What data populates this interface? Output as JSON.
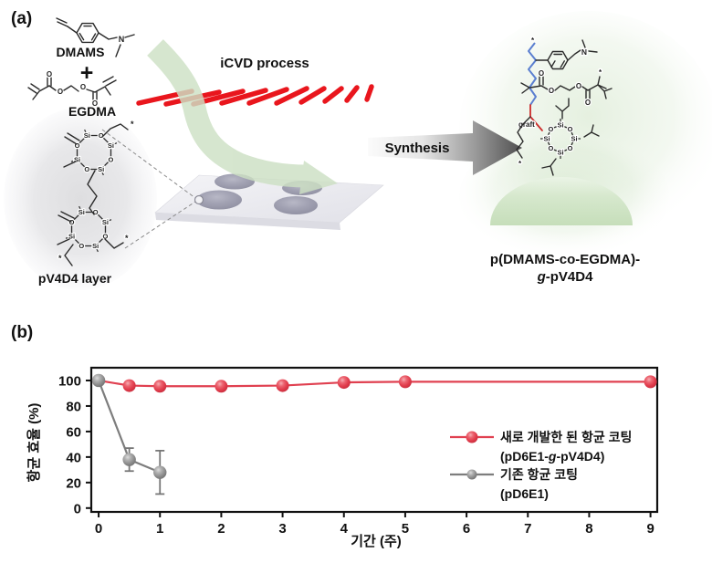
{
  "panel_a": {
    "label": "(a)",
    "dmams": "DMAMS",
    "plus": "+",
    "egdma": "EGDMA",
    "icvd": "iCVD process",
    "pv4d4": "pV4D4 layer",
    "synthesis": "Synthesis",
    "graft": "graft",
    "product_line1": "p(DMAMS-co-EGDMA)-",
    "product_g": "g",
    "product_rest": "-pV4D4"
  },
  "panel_b": {
    "label": "(b)"
  },
  "atoms": {
    "n": "N",
    "o": "O",
    "si": "Si",
    "star": "*"
  },
  "colors": {
    "red_series": "#e04050",
    "gray_series": "#8f8f8f",
    "filament_red": "#e9161d",
    "arrow_green": "#cde0c4",
    "axis": "#111111"
  },
  "chart_data": {
    "type": "line",
    "title": "",
    "xlabel": "기간 (주)",
    "ylabel": "항균 효율 (%)",
    "xticks": [
      0,
      1,
      2,
      3,
      4,
      5,
      6,
      7,
      8,
      9
    ],
    "yticks": [
      0,
      20,
      40,
      60,
      80,
      100
    ],
    "xlim": [
      -0.12,
      9.11
    ],
    "ylim": [
      -3,
      110
    ],
    "grid": false,
    "legend_position": "inside center-right",
    "series": [
      {
        "name": "새로 개발한 된 항균 코팅 (pD6E1-g-pV4D4)",
        "marker_color": "#e04050",
        "line_color": "#e04050",
        "x": [
          0,
          0.5,
          1,
          2,
          3,
          4,
          5,
          9
        ],
        "y": [
          100,
          96,
          95.5,
          95.5,
          96,
          98.5,
          99,
          99
        ],
        "yerr": [
          0,
          0,
          0,
          0,
          0,
          0,
          0,
          0
        ]
      },
      {
        "name": "기존 항균 코팅 (pD6E1)",
        "marker_color": "#8f8f8f",
        "line_color": "#7d7d7d",
        "x": [
          0,
          0.5,
          1
        ],
        "y": [
          100,
          38,
          28
        ],
        "yerr": [
          0,
          9,
          17
        ]
      }
    ],
    "legend": {
      "line1": "새로 개발한 된 항균 코팅",
      "line2_prefix": "(pD6E1-",
      "line2_italic": "g",
      "line2_suffix": "-pV4D4)",
      "line3": "기존 항균 코팅",
      "line4": "(pD6E1)"
    }
  }
}
